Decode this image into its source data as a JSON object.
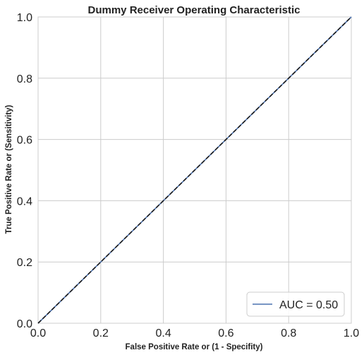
{
  "chart_data": {
    "type": "line",
    "title": "Dummy Receiver Operating Characteristic",
    "xlabel": "False Positive Rate or (1 - Specifity)",
    "ylabel": "True Positive Rate or (Sensitivity)",
    "xlim": [
      0,
      1
    ],
    "ylim": [
      0,
      1
    ],
    "xticks": [
      "0.0",
      "0.2",
      "0.4",
      "0.6",
      "0.8",
      "1.0"
    ],
    "yticks": [
      "0.0",
      "0.2",
      "0.4",
      "0.6",
      "0.8",
      "1.0"
    ],
    "grid": true,
    "legend_position": "lower-right",
    "series": [
      {
        "name": "AUC = 0.50",
        "x": [
          0,
          1
        ],
        "y": [
          0,
          1
        ],
        "color": "#4c72b0",
        "style": "solid"
      }
    ],
    "reference_line": {
      "x": [
        0,
        1
      ],
      "y": [
        0,
        1
      ],
      "color": "#1a1a1a",
      "style": "dashed"
    }
  }
}
